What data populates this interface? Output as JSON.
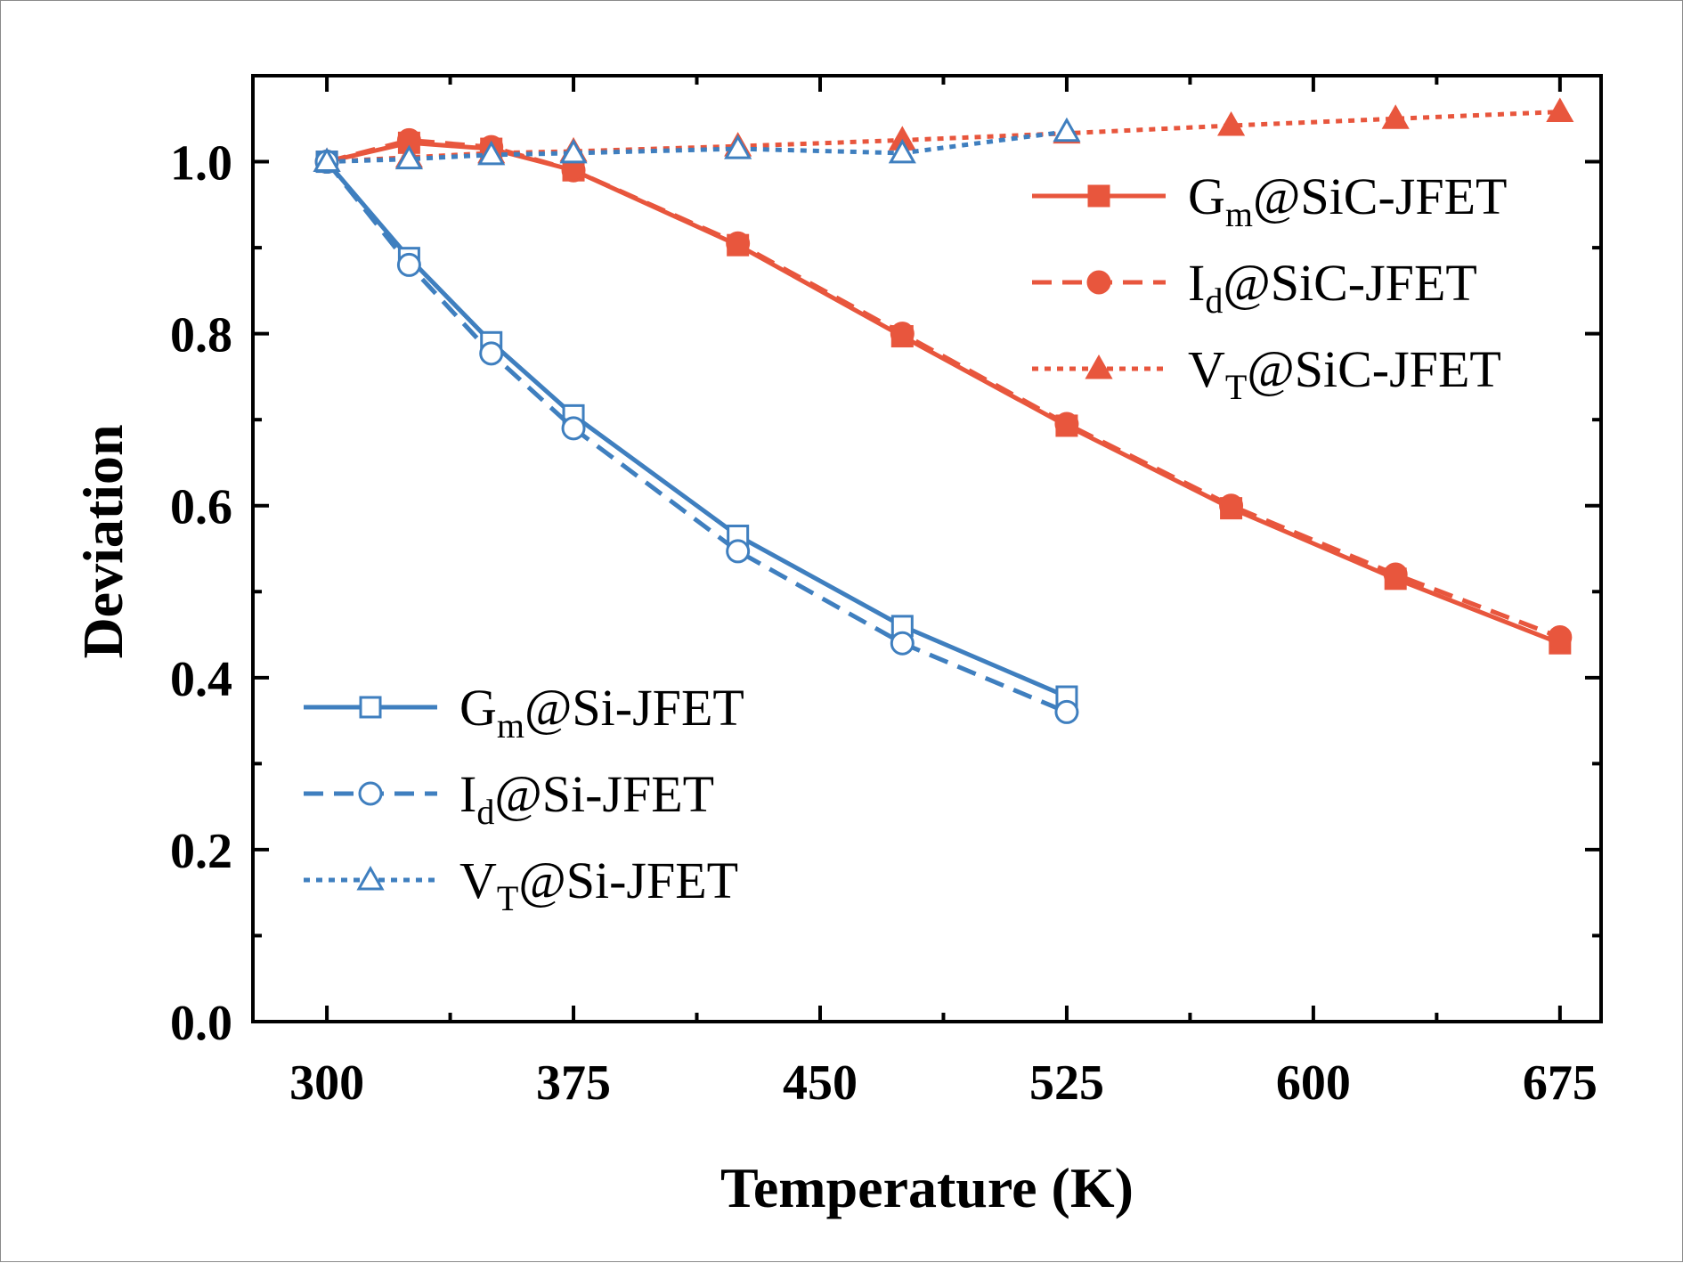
{
  "chart_data": {
    "type": "line",
    "title": "",
    "xlabel": "Temperature (K)",
    "ylabel": "Deviation",
    "xlim": [
      277.5,
      687.5
    ],
    "ylim": [
      0.0,
      1.1
    ],
    "x_ticks": [
      300,
      375,
      450,
      525,
      600,
      675
    ],
    "y_ticks": [
      0.0,
      0.2,
      0.4,
      0.6,
      0.8,
      1.0
    ],
    "y_tick_labels": [
      "0.0",
      "0.2",
      "0.4",
      "0.6",
      "0.8",
      "1.0"
    ],
    "grid": false,
    "legends": [
      {
        "placement": "upper-right",
        "entries": [
          "Gm@SiC-JFET",
          "Id@SiC-JFET",
          "VT@SiC-JFET"
        ]
      },
      {
        "placement": "lower-left",
        "entries": [
          "Gm@Si-JFET",
          "Id@Si-JFET",
          "VT@Si-JFET"
        ]
      }
    ],
    "series": [
      {
        "name": "Gm@SiC-JFET",
        "legend_main": "G",
        "legend_sub": "m",
        "legend_rest": "@SiC-JFET",
        "color": "#e8563d",
        "line_style": "solid",
        "marker": "square",
        "marker_fill": "filled",
        "x": [
          300,
          325,
          350,
          375,
          425,
          475,
          525,
          575,
          625,
          675
        ],
        "y": [
          1.0,
          1.022,
          1.015,
          0.99,
          0.903,
          0.797,
          0.693,
          0.597,
          0.515,
          0.44
        ]
      },
      {
        "name": "Id@SiC-JFET",
        "legend_main": "I",
        "legend_sub": "d",
        "legend_rest": "@SiC-JFET",
        "color": "#e8563d",
        "line_style": "dashed",
        "marker": "circle",
        "marker_fill": "filled",
        "x": [
          300,
          325,
          350,
          375,
          425,
          475,
          525,
          575,
          625,
          675
        ],
        "y": [
          1.0,
          1.025,
          1.017,
          0.99,
          0.905,
          0.8,
          0.695,
          0.6,
          0.52,
          0.447
        ]
      },
      {
        "name": "VT@SiC-JFET",
        "legend_main": "V",
        "legend_sub": "T",
        "legend_rest": "@SiC-JFET",
        "color": "#e8563d",
        "line_style": "dotted",
        "marker": "triangle",
        "marker_fill": "filled",
        "x": [
          300,
          325,
          350,
          375,
          425,
          475,
          525,
          575,
          625,
          675
        ],
        "y": [
          1.0,
          1.005,
          1.01,
          1.012,
          1.018,
          1.025,
          1.033,
          1.042,
          1.05,
          1.058
        ]
      },
      {
        "name": "Gm@Si-JFET",
        "legend_main": "G",
        "legend_sub": "m",
        "legend_rest": "@Si-JFET",
        "color": "#3f7fbf",
        "line_style": "solid",
        "marker": "square",
        "marker_fill": "open",
        "x": [
          300,
          325,
          350,
          375,
          425,
          475,
          525
        ],
        "y": [
          1.0,
          0.888,
          0.79,
          0.705,
          0.565,
          0.46,
          0.378
        ]
      },
      {
        "name": "Id@Si-JFET",
        "legend_main": "I",
        "legend_sub": "d",
        "legend_rest": "@Si-JFET",
        "color": "#3f7fbf",
        "line_style": "dashed",
        "marker": "circle",
        "marker_fill": "open",
        "x": [
          300,
          325,
          350,
          375,
          425,
          475,
          525
        ],
        "y": [
          1.0,
          0.88,
          0.777,
          0.69,
          0.547,
          0.44,
          0.36
        ]
      },
      {
        "name": "VT@Si-JFET",
        "legend_main": "V",
        "legend_sub": "T",
        "legend_rest": "@Si-JFET",
        "color": "#3f7fbf",
        "line_style": "dotted",
        "marker": "triangle",
        "marker_fill": "open",
        "x": [
          300,
          325,
          350,
          375,
          425,
          475,
          525
        ],
        "y": [
          1.0,
          1.003,
          1.008,
          1.01,
          1.015,
          1.01,
          1.035
        ]
      }
    ]
  }
}
